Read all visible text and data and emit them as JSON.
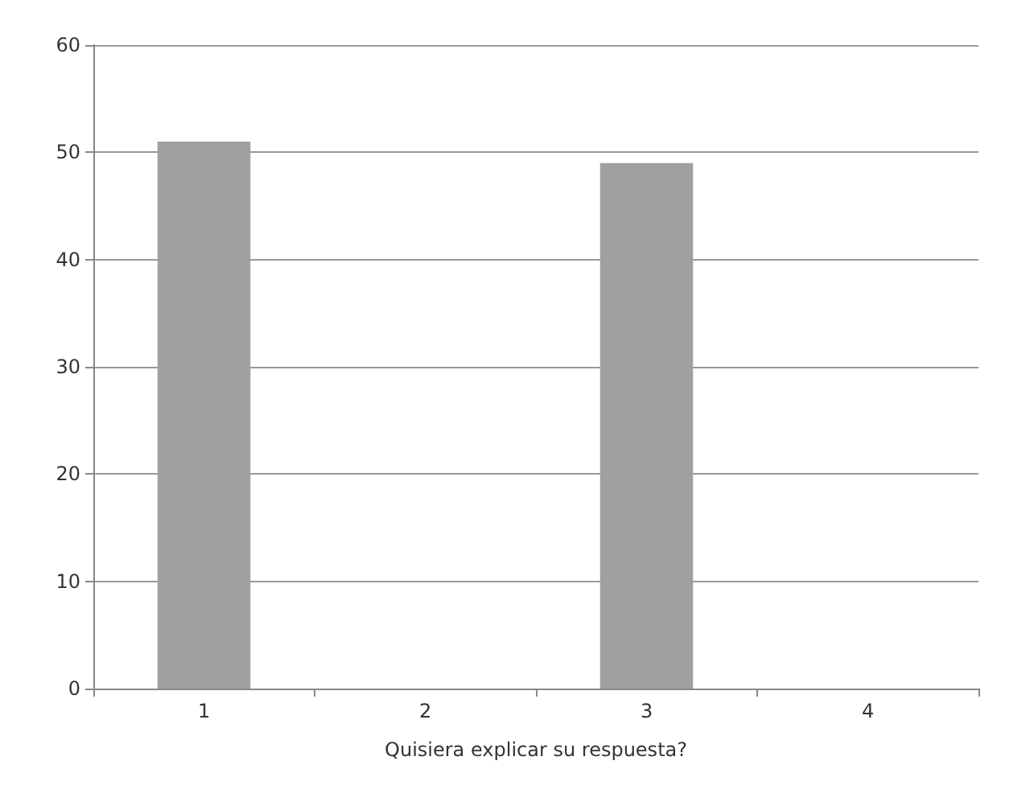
{
  "chart_data": {
    "type": "bar",
    "xlabel": "Quisiera explicar su respuesta?",
    "categories": [
      "1",
      "2",
      "3",
      "4"
    ],
    "values": [
      51,
      0,
      49,
      0
    ],
    "color": "#a0a0a0",
    "ylim": [
      0,
      60
    ],
    "yticks": [
      0,
      10,
      20,
      30,
      40,
      50,
      60
    ],
    "grid": "y"
  }
}
